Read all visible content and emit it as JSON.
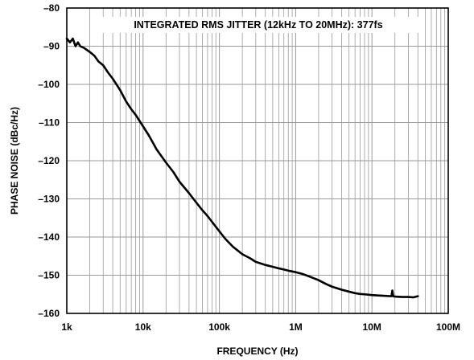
{
  "chart_data": {
    "type": "line",
    "title": "",
    "annotation": "INTEGRATED RMS JITTER (12kHz TO 20MHz): 377fs",
    "xlabel": "FREQUENCY (Hz)",
    "ylabel": "PHASE NOISE (dBc/Hz)",
    "x_scale": "log",
    "xlim": [
      1000,
      100000000
    ],
    "ylim": [
      -160,
      -80
    ],
    "grid": true,
    "x_ticks": [
      {
        "value": 1000,
        "label": "1k"
      },
      {
        "value": 10000,
        "label": "10k"
      },
      {
        "value": 100000,
        "label": "100k"
      },
      {
        "value": 1000000,
        "label": "1M"
      },
      {
        "value": 10000000,
        "label": "10M"
      },
      {
        "value": 100000000,
        "label": "100M"
      }
    ],
    "y_ticks": [
      {
        "value": -80,
        "label": "–80"
      },
      {
        "value": -90,
        "label": "–90"
      },
      {
        "value": -100,
        "label": "–100"
      },
      {
        "value": -110,
        "label": "–110"
      },
      {
        "value": -120,
        "label": "–120"
      },
      {
        "value": -130,
        "label": "–130"
      },
      {
        "value": -140,
        "label": "–140"
      },
      {
        "value": -150,
        "label": "–150"
      },
      {
        "value": -160,
        "label": "–160"
      }
    ],
    "series": [
      {
        "color": "#000000",
        "x": [
          1000,
          1100,
          1200,
          1300,
          1400,
          1500,
          1700,
          2000,
          2300,
          2600,
          3000,
          3500,
          4000,
          5000,
          6000,
          7000,
          8000,
          10000,
          12000,
          15000,
          20000,
          25000,
          30000,
          40000,
          50000,
          60000,
          70000,
          80000,
          100000,
          120000,
          150000,
          200000,
          250000,
          300000,
          400000,
          500000,
          600000,
          700000,
          800000,
          1000000,
          1200000,
          1500000,
          2000000,
          2500000,
          3000000,
          4000000,
          5000000,
          6000000,
          7000000,
          8000000,
          10000000,
          12000000,
          15000000,
          18000000,
          18500000,
          19000000,
          20000000,
          25000000,
          30000000,
          35000000,
          40000000
        ],
        "y": [
          -88,
          -89,
          -88,
          -90,
          -89,
          -90,
          -90.5,
          -91.5,
          -92.5,
          -94,
          -95,
          -97,
          -98.5,
          -101.5,
          -104.5,
          -106.5,
          -108,
          -111,
          -113.5,
          -117,
          -120.5,
          -123,
          -125.5,
          -128.5,
          -131,
          -133,
          -134.5,
          -136,
          -138.5,
          -140.5,
          -142.5,
          -144.5,
          -145.5,
          -146.5,
          -147.3,
          -147.8,
          -148.2,
          -148.5,
          -148.8,
          -149.2,
          -149.6,
          -150.3,
          -151.3,
          -152.3,
          -153,
          -153.8,
          -154.3,
          -154.7,
          -154.9,
          -155,
          -155.2,
          -155.3,
          -155.4,
          -155.5,
          -154,
          -155.5,
          -155.6,
          -155.7,
          -155.7,
          -155.8,
          -155.5
        ]
      }
    ]
  }
}
